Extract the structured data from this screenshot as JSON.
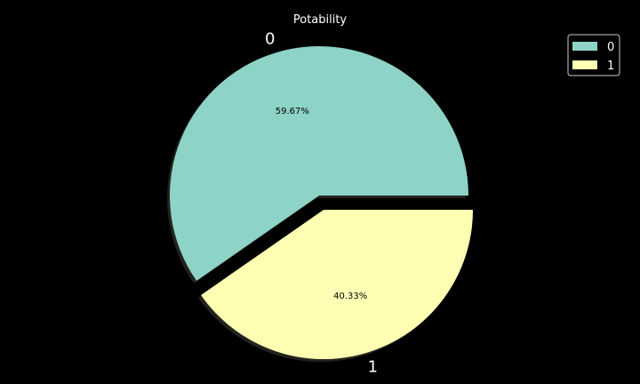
{
  "chart_data": {
    "type": "pie",
    "title": "Potability",
    "categories": [
      "0",
      "1"
    ],
    "values": [
      59.67,
      40.33
    ],
    "labels": [
      "0",
      "1"
    ],
    "autopct": [
      "59.67%",
      "40.33%"
    ],
    "colors": [
      "#8dd3c7",
      "#ffffb3"
    ],
    "explode": [
      0,
      0.1
    ],
    "shadow": true,
    "start_angle_deg": 0,
    "legend": {
      "placement": "top-right",
      "entries": [
        "0",
        "1"
      ]
    }
  }
}
